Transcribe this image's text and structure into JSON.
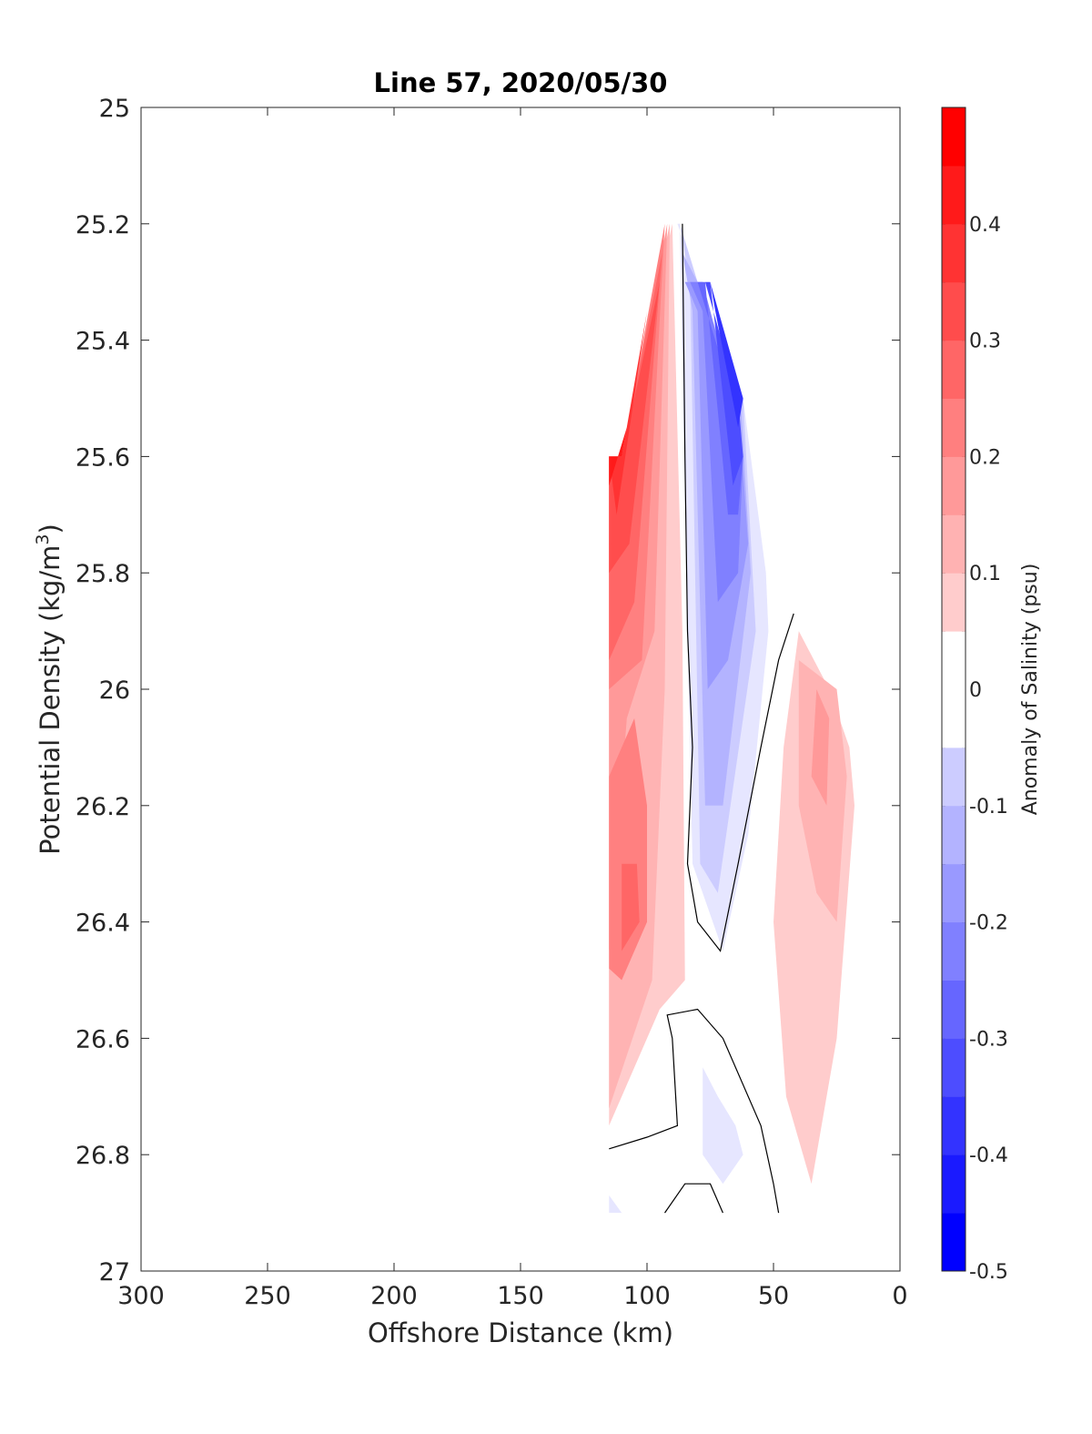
{
  "chart_data": {
    "type": "contour",
    "title": "Line 57, 2020/05/30",
    "xlabel": "Offshore Distance (km)",
    "ylabel_main": "Potential Density (kg/m",
    "ylabel_sup": "3",
    "ylabel_end": ")",
    "xlim": [
      300,
      0
    ],
    "ylim": [
      25,
      27
    ],
    "x_reversed": true,
    "y_reversed": true,
    "xticks": [
      300,
      250,
      200,
      150,
      100,
      50,
      0
    ],
    "xtick_labels": [
      "300",
      "250",
      "200",
      "150",
      "100",
      "50",
      "0"
    ],
    "yticks": [
      25,
      25.2,
      25.4,
      25.6,
      25.8,
      26,
      26.2,
      26.4,
      26.6,
      26.8,
      27
    ],
    "ytick_labels": [
      "25",
      "25.2",
      "25.4",
      "25.6",
      "25.8",
      "26",
      "26.2",
      "26.4",
      "26.6",
      "26.8",
      "27"
    ],
    "grid": false,
    "colorbar": {
      "label": "Anomaly of Salinity (psu)",
      "range": [
        -0.5,
        0.5
      ],
      "step": 0.05,
      "ticks": [
        -0.5,
        -0.4,
        -0.3,
        -0.2,
        -0.1,
        0,
        0.1,
        0.2,
        0.3,
        0.4
      ],
      "tick_labels": [
        "-0.5",
        "-0.4",
        "-0.3",
        "-0.2",
        "-0.1",
        "0",
        "0.1",
        "0.2",
        "0.3",
        "0.4"
      ],
      "colormap": "blue-white-red",
      "low_color": "#0000ff",
      "mid_color": "#ffffff",
      "high_color": "#ff0000"
    },
    "regions": [
      {
        "value": 0.1,
        "points": [
          [
            115,
            25.6
          ],
          [
            110,
            25.6
          ],
          [
            90,
            25.2
          ],
          [
            86,
            25.9
          ],
          [
            85,
            26.5
          ],
          [
            95,
            26.55
          ],
          [
            115,
            26.75
          ]
        ]
      },
      {
        "value": 0.15,
        "points": [
          [
            115,
            25.6
          ],
          [
            110,
            25.6
          ],
          [
            91,
            25.2
          ],
          [
            93,
            26.0
          ],
          [
            98,
            26.5
          ],
          [
            115,
            26.72
          ]
        ]
      },
      {
        "value": 0.2,
        "points": [
          [
            115,
            25.6
          ],
          [
            110,
            25.6
          ],
          [
            92,
            25.2
          ],
          [
            97,
            25.9
          ],
          [
            108,
            26.05
          ],
          [
            115,
            26.45
          ]
        ]
      },
      {
        "value": 0.25,
        "points": [
          [
            115,
            25.6
          ],
          [
            110,
            25.6
          ],
          [
            93,
            25.2
          ],
          [
            102,
            25.95
          ],
          [
            115,
            26.0
          ]
        ]
      },
      {
        "value": 0.3,
        "points": [
          [
            115,
            25.6
          ],
          [
            110,
            25.6
          ],
          [
            94,
            25.25
          ],
          [
            105,
            25.85
          ],
          [
            115,
            25.95
          ]
        ]
      },
      {
        "value": 0.35,
        "points": [
          [
            115,
            25.6
          ],
          [
            110,
            25.6
          ],
          [
            95,
            25.3
          ],
          [
            107,
            25.75
          ],
          [
            115,
            25.8
          ]
        ]
      },
      {
        "value": 0.4,
        "points": [
          [
            115,
            25.6
          ],
          [
            110,
            25.6
          ],
          [
            100,
            25.35
          ],
          [
            112,
            25.7
          ]
        ]
      },
      {
        "value": 0.45,
        "points": [
          [
            115,
            25.6
          ],
          [
            110,
            25.6
          ],
          [
            108,
            25.55
          ],
          [
            115,
            25.65
          ]
        ]
      },
      {
        "value": 0.25,
        "points": [
          [
            115,
            26.15
          ],
          [
            105,
            26.05
          ],
          [
            100,
            26.2
          ],
          [
            100,
            26.4
          ],
          [
            110,
            26.5
          ],
          [
            115,
            26.48
          ]
        ]
      },
      {
        "value": 0.3,
        "points": [
          [
            110,
            26.3
          ],
          [
            104,
            26.3
          ],
          [
            103,
            26.4
          ],
          [
            110,
            26.45
          ]
        ]
      },
      {
        "value": -0.05,
        "points": [
          [
            88,
            25.2
          ],
          [
            87,
            25.2
          ],
          [
            84,
            25.9
          ],
          [
            82,
            26.3
          ],
          [
            70,
            26.45
          ],
          [
            60,
            26.25
          ],
          [
            52,
            25.9
          ],
          [
            53,
            25.8
          ],
          [
            62,
            25.5
          ],
          [
            80,
            25.3
          ]
        ]
      },
      {
        "value": -0.1,
        "points": [
          [
            87,
            25.2
          ],
          [
            83,
            25.3
          ],
          [
            79,
            26.3
          ],
          [
            72,
            26.35
          ],
          [
            57,
            25.9
          ],
          [
            62,
            25.5
          ],
          [
            80,
            25.3
          ]
        ]
      },
      {
        "value": -0.15,
        "points": [
          [
            86,
            25.25
          ],
          [
            82,
            25.35
          ],
          [
            77,
            26.2
          ],
          [
            70,
            26.2
          ],
          [
            59,
            25.8
          ],
          [
            63,
            25.5
          ],
          [
            80,
            25.3
          ]
        ]
      },
      {
        "value": -0.2,
        "points": [
          [
            85,
            25.3
          ],
          [
            80,
            25.35
          ],
          [
            76,
            26.0
          ],
          [
            68,
            25.95
          ],
          [
            60,
            25.75
          ],
          [
            64,
            25.5
          ],
          [
            80,
            25.3
          ]
        ]
      },
      {
        "value": -0.25,
        "points": [
          [
            83,
            25.3
          ],
          [
            78,
            25.35
          ],
          [
            72,
            25.85
          ],
          [
            64,
            25.8
          ],
          [
            62,
            25.6
          ],
          [
            66,
            25.5
          ],
          [
            78,
            25.3
          ]
        ]
      },
      {
        "value": -0.3,
        "points": [
          [
            80,
            25.3
          ],
          [
            77,
            25.3
          ],
          [
            68,
            25.7
          ],
          [
            64,
            25.7
          ],
          [
            62,
            25.6
          ],
          [
            66,
            25.5
          ]
        ]
      },
      {
        "value": -0.35,
        "points": [
          [
            77,
            25.3
          ],
          [
            75,
            25.3
          ],
          [
            66,
            25.65
          ],
          [
            62,
            25.6
          ],
          [
            64,
            25.5
          ]
        ]
      },
      {
        "value": -0.4,
        "points": [
          [
            75,
            25.3
          ],
          [
            73,
            25.35
          ],
          [
            64,
            25.55
          ],
          [
            62,
            25.5
          ]
        ]
      },
      {
        "value": 0.1,
        "points": [
          [
            40,
            25.9
          ],
          [
            28,
            26.0
          ],
          [
            20,
            26.1
          ],
          [
            18,
            26.2
          ],
          [
            25,
            26.6
          ],
          [
            35,
            26.85
          ],
          [
            45,
            26.7
          ],
          [
            50,
            26.4
          ],
          [
            46,
            26.1
          ]
        ]
      },
      {
        "value": 0.15,
        "points": [
          [
            40,
            25.95
          ],
          [
            25,
            26.0
          ],
          [
            21,
            26.15
          ],
          [
            25,
            26.4
          ],
          [
            33,
            26.35
          ],
          [
            40,
            26.2
          ]
        ]
      },
      {
        "value": 0.2,
        "points": [
          [
            33,
            26.0
          ],
          [
            28,
            26.05
          ],
          [
            29,
            26.2
          ],
          [
            35,
            26.15
          ]
        ]
      },
      {
        "value": -0.05,
        "points": [
          [
            78,
            26.65
          ],
          [
            72,
            26.7
          ],
          [
            65,
            26.75
          ],
          [
            62,
            26.8
          ],
          [
            70,
            26.85
          ],
          [
            78,
            26.8
          ]
        ]
      },
      {
        "value": -0.05,
        "points": [
          [
            115,
            26.87
          ],
          [
            110,
            26.9
          ],
          [
            108,
            26.9
          ],
          [
            115,
            26.9
          ]
        ]
      }
    ],
    "zero_contours": [
      [
        [
          86,
          25.2
        ],
        [
          85,
          25.6
        ],
        [
          84,
          25.9
        ],
        [
          82,
          26.1
        ],
        [
          84,
          26.3
        ],
        [
          80,
          26.4
        ],
        [
          71,
          26.45
        ],
        [
          64,
          26.3
        ],
        [
          55,
          26.1
        ],
        [
          48,
          25.95
        ],
        [
          42,
          25.87
        ]
      ],
      [
        [
          115,
          26.79
        ],
        [
          100,
          26.77
        ],
        [
          88,
          26.75
        ],
        [
          90,
          26.6
        ],
        [
          92,
          26.56
        ],
        [
          80,
          26.55
        ],
        [
          70,
          26.6
        ],
        [
          55,
          26.75
        ],
        [
          50,
          26.85
        ],
        [
          48,
          26.9
        ]
      ],
      [
        [
          93,
          26.9
        ],
        [
          85,
          26.85
        ],
        [
          75,
          26.85
        ],
        [
          70,
          26.9
        ]
      ]
    ]
  }
}
